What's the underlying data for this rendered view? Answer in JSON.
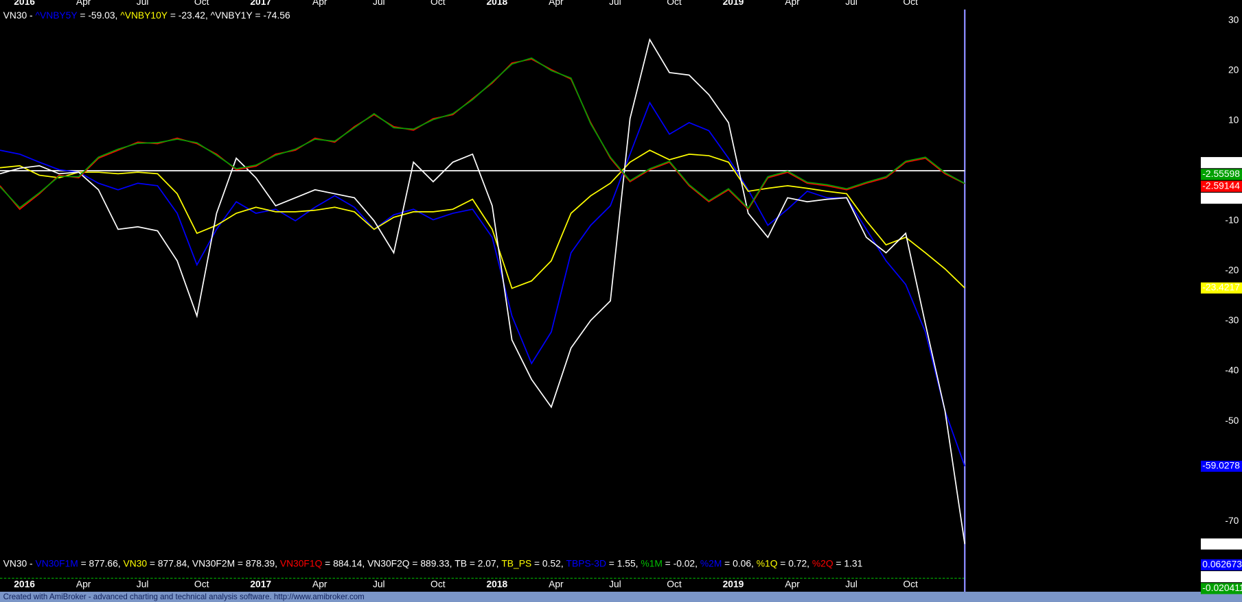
{
  "chart_data": {
    "type": "line",
    "legend_prefix": "VN30 - ",
    "legend_equals": " = ",
    "legend_separator": ", ",
    "x": [
      -1,
      0,
      1,
      2,
      3,
      4,
      5,
      6,
      7,
      8,
      9,
      10,
      11,
      12,
      13,
      14,
      15,
      16,
      17,
      18,
      19,
      20,
      21,
      22,
      23,
      24,
      25,
      26,
      27,
      28,
      29,
      30,
      31,
      32,
      33,
      34,
      35,
      36,
      37,
      38,
      39,
      40,
      41,
      42,
      43,
      44,
      45,
      46,
      47,
      48
    ],
    "xlim": [
      -1,
      48
    ],
    "xticks": [
      {
        "value": 0,
        "label": "2016"
      },
      {
        "value": 3,
        "label": "Apr"
      },
      {
        "value": 6,
        "label": "Jul"
      },
      {
        "value": 9,
        "label": "Oct"
      },
      {
        "value": 12,
        "label": "2017"
      },
      {
        "value": 15,
        "label": "Apr"
      },
      {
        "value": 18,
        "label": "Jul"
      },
      {
        "value": 21,
        "label": "Oct"
      },
      {
        "value": 24,
        "label": "2018"
      },
      {
        "value": 27,
        "label": "Apr"
      },
      {
        "value": 30,
        "label": "Jul"
      },
      {
        "value": 33,
        "label": "Oct"
      },
      {
        "value": 36,
        "label": "2019"
      },
      {
        "value": 39,
        "label": "Apr"
      },
      {
        "value": 42,
        "label": "Jul"
      },
      {
        "value": 45,
        "label": "Oct"
      }
    ],
    "ylim": [
      -76.5,
      32.2
    ],
    "yticks": [
      30,
      20,
      10,
      -10,
      -20,
      -30,
      -40,
      -50,
      -70
    ],
    "series": [
      {
        "name": "^VNBY5Y",
        "color": "#0000ff",
        "legend_value": -59.03,
        "values": [
          4.1,
          3.3,
          1.7,
          0.2,
          -0.3,
          -2.5,
          -3.8,
          -2.5,
          -3,
          -8.5,
          -18.8,
          -11.7,
          -6.2,
          -8.5,
          -7.7,
          -10,
          -7.3,
          -5,
          -7.3,
          -11.7,
          -8.8,
          -7.7,
          -9.8,
          -8.5,
          -7.7,
          -13.3,
          -29,
          -38.5,
          -32.2,
          -16.4,
          -10.9,
          -7,
          3.3,
          13.6,
          7.3,
          9.6,
          8,
          2.5,
          -3.8,
          -10.9,
          -7.7,
          -4.1,
          -5.4,
          -5.4,
          -11.7,
          -18,
          -22.7,
          -32.2,
          -48,
          -59.0278
        ]
      },
      {
        "name": "^VNBY10Y",
        "color": "#ffff00",
        "legend_value": -23.42,
        "values": [
          0.6,
          1,
          -0.9,
          -1.4,
          -0.3,
          -0.3,
          -0.6,
          -0.3,
          -0.6,
          -4.6,
          -12.5,
          -10.9,
          -8.5,
          -7.3,
          -8.2,
          -8.2,
          -7.9,
          -7.3,
          -8.2,
          -11.7,
          -9.3,
          -8.2,
          -8.2,
          -7.7,
          -5.7,
          -11.7,
          -23.5,
          -22,
          -18,
          -8.5,
          -5,
          -2.5,
          1.7,
          4.1,
          2.2,
          3.3,
          3,
          1.7,
          -4.1,
          -3.5,
          -3,
          -3.5,
          -4.1,
          -4.6,
          -10,
          -14.8,
          -13.3,
          -16.4,
          -19.6,
          -23.4217
        ]
      },
      {
        "name": "^VNBY1Y",
        "color": "#ffffff",
        "legend_value": -74.56,
        "values": [
          -0.6,
          0.5,
          1,
          -0.6,
          -0.3,
          -3.8,
          -11.7,
          -11.2,
          -12,
          -18,
          -29,
          -8.5,
          2.5,
          -1.4,
          -7,
          -5.4,
          -3.8,
          -4.6,
          -5.4,
          -10,
          -16.4,
          1.7,
          -2.2,
          1.7,
          3.3,
          -7,
          -33.8,
          -41.7,
          -47.2,
          -35.4,
          -29.9,
          -26,
          10.4,
          26.2,
          19.6,
          19.1,
          15.2,
          9.6,
          -8.5,
          -13.3,
          -5.4,
          -6.2,
          -5.7,
          -5.4,
          -13.3,
          -16.4,
          -12.5,
          -30.6,
          -48,
          -74.556
        ]
      },
      {
        "color": "#ff0000",
        "values": [
          -3,
          -7.7,
          -4.6,
          -0.9,
          -1.4,
          2.5,
          4.1,
          5.7,
          5.4,
          6.5,
          5.4,
          3.3,
          0.2,
          0.9,
          3.3,
          4.1,
          6.5,
          5.7,
          8.8,
          11.2,
          8.8,
          8.1,
          10.4,
          11.2,
          14.4,
          17.5,
          21.5,
          22.3,
          20.2,
          18.3,
          9.6,
          2.5,
          -2.2,
          0.2,
          1.7,
          -3,
          -6.2,
          -3.8,
          -7.7,
          -1.4,
          -0.3,
          -2.5,
          -3,
          -3.8,
          -2.5,
          -1.4,
          1.7,
          2.5,
          -0.6,
          -2.59144
        ]
      },
      {
        "color": "#00a000",
        "values": [
          -3.2,
          -7.4,
          -4.4,
          -1.1,
          -1.2,
          2.7,
          4.3,
          5.5,
          5.6,
          6.3,
          5.6,
          3.1,
          0.4,
          1.1,
          3.1,
          4.3,
          6.3,
          5.9,
          8.6,
          11.4,
          8.6,
          8.3,
          10.2,
          11.4,
          14.2,
          17.7,
          21.3,
          22.5,
          20,
          18.5,
          9.4,
          2.7,
          -2,
          0.4,
          1.9,
          -2.8,
          -6,
          -3.6,
          -7.5,
          -1.2,
          -0.1,
          -2.3,
          -2.8,
          -3.6,
          -2.3,
          -1.2,
          1.9,
          2.7,
          -0.4,
          -2.55598
        ]
      }
    ],
    "reference_lines": [
      {
        "value": 0,
        "label": "0.00000",
        "color": "#ffffff"
      }
    ],
    "extra_labels": [
      {
        "value": -2.59144,
        "color": "#ffffff"
      }
    ],
    "lower_panel": {
      "legend_prefix": "VN30 - ",
      "items": [
        {
          "name": "VN30F1M",
          "color": "#0000ff",
          "value": 877.66
        },
        {
          "name": "VN30",
          "color": "#ffff00",
          "value": 877.84
        },
        {
          "name": "VN30F2M",
          "color": "#ffffff",
          "value": 878.39
        },
        {
          "name": "VN30F1Q",
          "color": "#ff0000",
          "value": 884.14
        },
        {
          "name": "VN30F2Q",
          "color": "#ffffff",
          "value": 889.33
        },
        {
          "name": "TB",
          "color": "#ffffff",
          "value": 2.07
        },
        {
          "name": "TB_PS",
          "color": "#ffff00",
          "value": 0.52
        },
        {
          "name": "TBPS-3D",
          "color": "#0000ff",
          "value": 1.55
        },
        {
          "name": "%1M",
          "color": "#00c000",
          "value": -0.02
        },
        {
          "name": "%2M",
          "color": "#0000ff",
          "value": 0.06
        },
        {
          "name": "%1Q",
          "color": "#ffff00",
          "value": 0.72
        },
        {
          "name": "%2Q",
          "color": "#ff0000",
          "value": 1.31
        }
      ],
      "last_labels": [
        {
          "value": 0.062673,
          "color": "#0000ff"
        },
        {
          "value": 0,
          "label": "0.00000",
          "color": "#ffffff"
        },
        {
          "value": -0.020411,
          "color": "#00a000"
        }
      ]
    },
    "footer": "Created with AmiBroker - advanced charting and technical analysis software. http://www.amibroker.com"
  }
}
